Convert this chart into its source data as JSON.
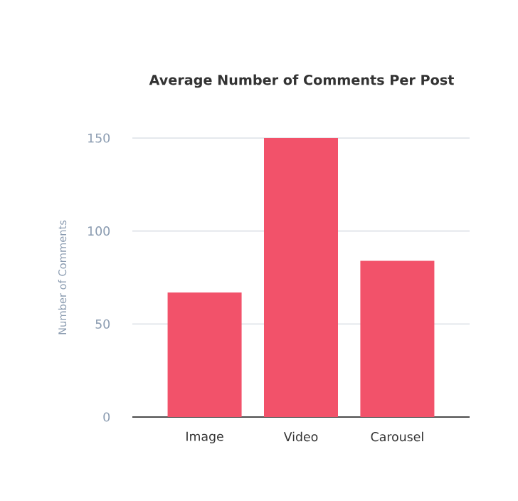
{
  "chart_data": {
    "type": "bar",
    "title": "Average Number of Comments Per Post",
    "ylabel": "Number of Comments",
    "categories": [
      "Image",
      "Video",
      "Carousel"
    ],
    "values": [
      67,
      150,
      84
    ],
    "color": "#f2526a",
    "ylim": [
      0,
      150
    ],
    "yticks": [
      0,
      50,
      100,
      150
    ],
    "grid": "y"
  }
}
